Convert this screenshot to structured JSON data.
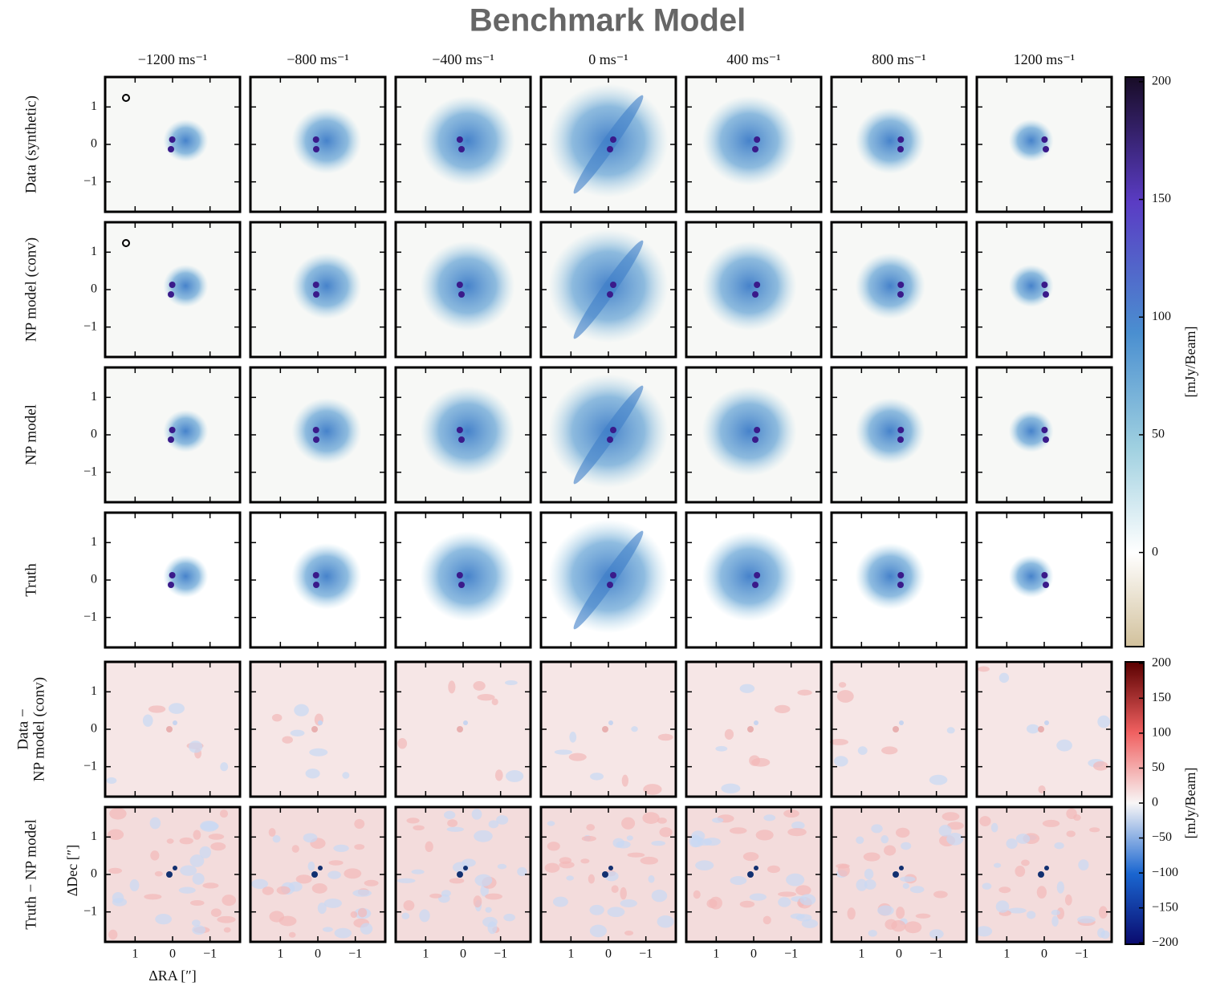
{
  "chart_data": {
    "type": "image",
    "title": "Benchmark Model",
    "columns": [
      "−1200 ms⁻¹",
      "−800 ms⁻¹",
      "−400 ms⁻¹",
      "0 ms⁻¹",
      "400 ms⁻¹",
      "800 ms⁻¹",
      "1200 ms⁻¹"
    ],
    "rows": [
      [
        "Data (synthetic)"
      ],
      [
        "NP model (conv)"
      ],
      [
        "NP model"
      ],
      [
        "Truth"
      ],
      [
        "Data −",
        "NP model (conv)"
      ],
      [
        "Truth − NP model"
      ]
    ],
    "xlabel": "ΔRA [″]",
    "ylabel": "ΔDec [″]",
    "xlim": [
      1.8,
      -1.8
    ],
    "ylim": [
      -1.8,
      1.8
    ],
    "xticks": [
      1,
      0,
      {
        "value": -1,
        "label": "−1"
      }
    ],
    "yticks": [
      1,
      0,
      {
        "value": -1,
        "label": "−1"
      }
    ],
    "colorbars": [
      {
        "label": "[mJy/Beam]",
        "lim": [
          -40,
          202
        ],
        "ticks": [
          0,
          50,
          100,
          150,
          200
        ]
      },
      {
        "label": "[mJy/Beam]",
        "lim": [
          -202,
          202
        ],
        "ticks": [
          {
            "value": -200,
            "label": "−200"
          },
          {
            "value": -150,
            "label": "−150"
          },
          {
            "value": -100,
            "label": "−100"
          },
          {
            "value": -50,
            "label": "−50"
          },
          0,
          50,
          100,
          150,
          200
        ]
      }
    ]
  }
}
